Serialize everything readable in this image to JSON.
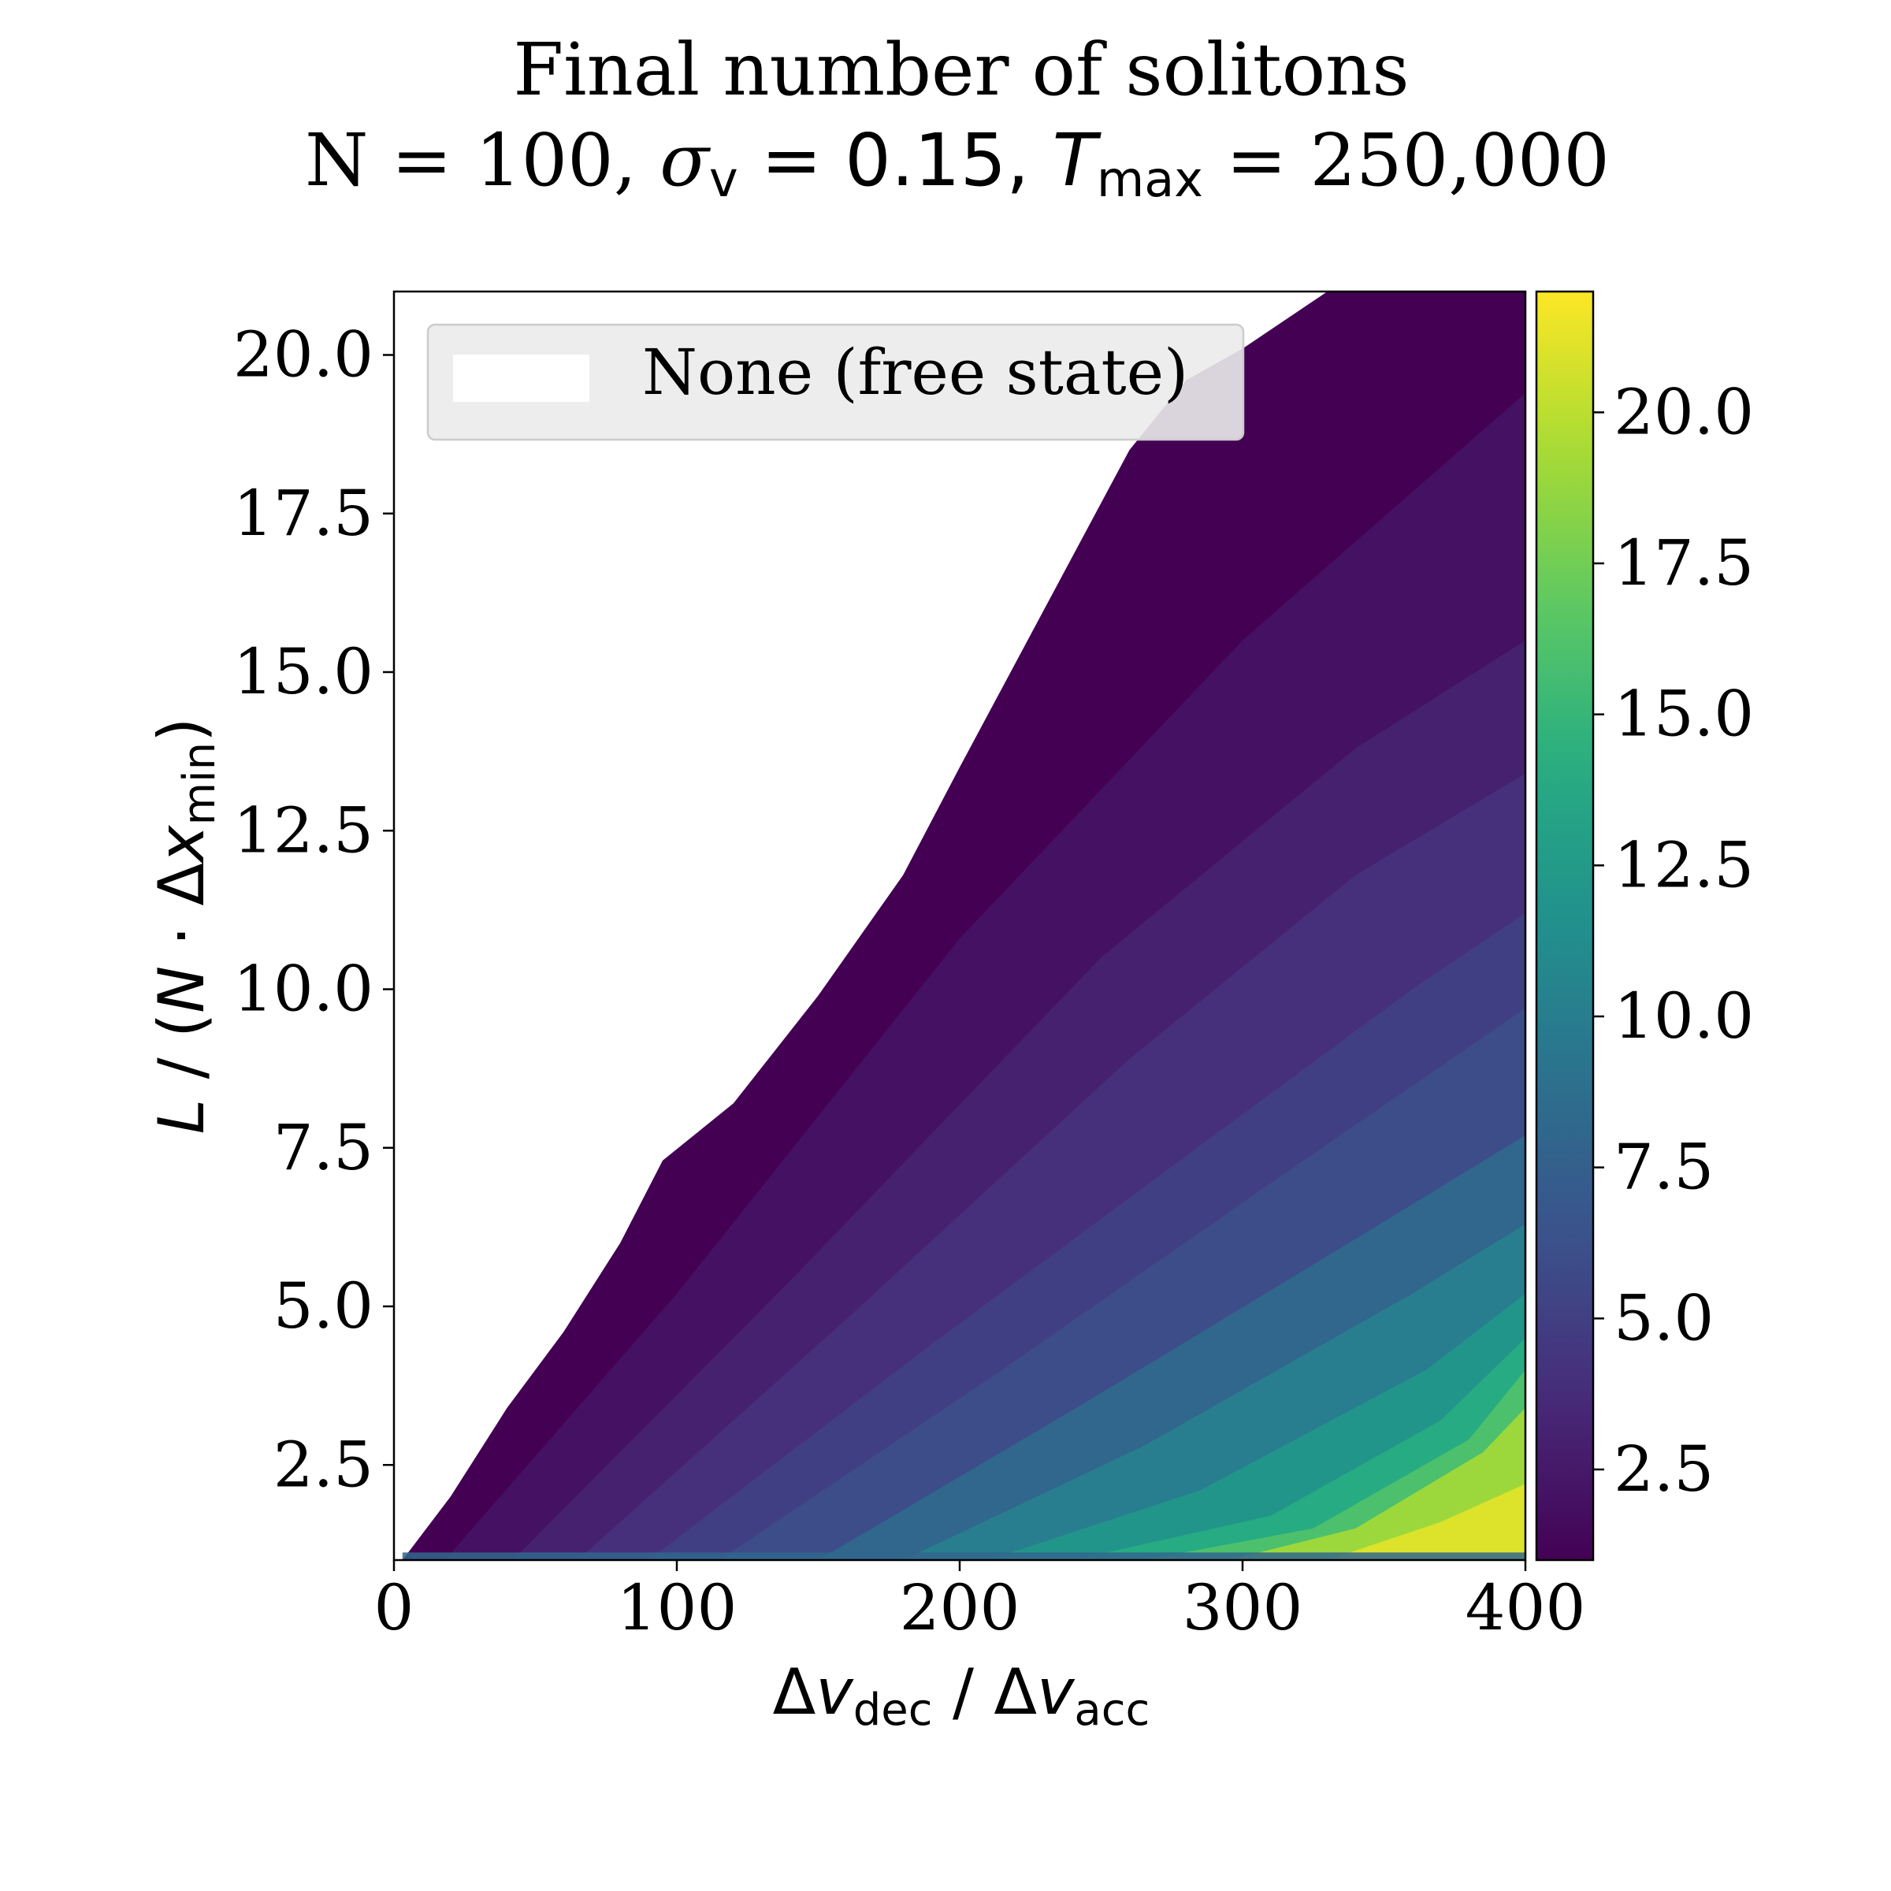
{
  "chart_data": {
    "type": "heatmap",
    "title_line1": "Final number of solitons",
    "title_line2": {
      "n_part": "N = 100, ",
      "sigma_symbol": "σ",
      "sigma_sub": "v",
      "sigma_value": " = 0.15, ",
      "t_symbol": "T",
      "t_sub": "max",
      "t_value": " = 250,000"
    },
    "xlabel": {
      "d1": "Δ",
      "v1": "v",
      "sub1": "dec",
      "sep": " / ",
      "d2": "Δ",
      "v2": "v",
      "sub2": "acc"
    },
    "ylabel": {
      "l": "L",
      "mid": " / (",
      "n": "N",
      "dot": " · ",
      "d": "Δ",
      "x": "x",
      "sub": "min",
      "end": ")"
    },
    "xlim": [
      0,
      400
    ],
    "ylim": [
      1.0,
      21.0
    ],
    "xticks": [
      0,
      100,
      200,
      300,
      400
    ],
    "xtick_labels": [
      "0",
      "100",
      "200",
      "300",
      "400"
    ],
    "yticks": [
      2.5,
      5.0,
      7.5,
      10.0,
      12.5,
      15.0,
      17.5,
      20.0
    ],
    "ytick_labels": [
      "2.5",
      "5.0",
      "7.5",
      "10.0",
      "12.5",
      "15.0",
      "17.5",
      "20.0"
    ],
    "colorbar": {
      "colormap": "viridis",
      "range": [
        1,
        22
      ],
      "ticks": [
        2.5,
        5.0,
        7.5,
        10.0,
        12.5,
        15.0,
        17.5,
        20.0
      ],
      "tick_labels": [
        "2.5",
        "5.0",
        "7.5",
        "10.0",
        "12.5",
        "15.0",
        "17.5",
        "20.0"
      ]
    },
    "legend": {
      "label": "None (free state)",
      "swatch_color": "#ffffff",
      "position": "upper-left"
    },
    "free_state_boundary": [
      [
        3,
        1.0
      ],
      [
        20,
        2.0
      ],
      [
        40,
        3.4
      ],
      [
        60,
        4.6
      ],
      [
        80,
        6.0
      ],
      [
        95,
        7.3
      ],
      [
        120,
        8.2
      ],
      [
        150,
        9.9
      ],
      [
        180,
        11.8
      ],
      [
        200,
        13.5
      ],
      [
        230,
        16.0
      ],
      [
        260,
        18.5
      ],
      [
        280,
        19.6
      ],
      [
        300,
        20.1
      ],
      [
        330,
        21.0
      ]
    ],
    "contours": [
      {
        "value": 2,
        "points": [
          [
            18,
            1.0
          ],
          [
            100,
            5.2
          ],
          [
            200,
            10.8
          ],
          [
            300,
            15.5
          ],
          [
            400,
            19.4
          ]
        ]
      },
      {
        "value": 3,
        "points": [
          [
            42,
            1.0
          ],
          [
            140,
            5.4
          ],
          [
            250,
            10.5
          ],
          [
            340,
            13.8
          ],
          [
            400,
            15.5
          ]
        ]
      },
      {
        "value": 4,
        "points": [
          [
            65,
            1.0
          ],
          [
            160,
            4.8
          ],
          [
            260,
            8.9
          ],
          [
            340,
            11.8
          ],
          [
            400,
            13.4
          ]
        ]
      },
      {
        "value": 5,
        "points": [
          [
            90,
            1.0
          ],
          [
            190,
            4.4
          ],
          [
            290,
            7.7
          ],
          [
            360,
            10.0
          ],
          [
            400,
            11.2
          ]
        ]
      },
      {
        "value": 6,
        "points": [
          [
            115,
            1.0
          ],
          [
            215,
            4.0
          ],
          [
            315,
            7.1
          ],
          [
            400,
            9.7
          ]
        ]
      },
      {
        "value": 8,
        "points": [
          [
            150,
            1.0
          ],
          [
            245,
            3.5
          ],
          [
            345,
            6.2
          ],
          [
            400,
            7.7
          ]
        ]
      },
      {
        "value": 10,
        "points": [
          [
            180,
            1.0
          ],
          [
            265,
            2.8
          ],
          [
            360,
            5.2
          ],
          [
            400,
            6.3
          ]
        ]
      },
      {
        "value": 12,
        "points": [
          [
            210,
            1.0
          ],
          [
            285,
            2.1
          ],
          [
            365,
            4.0
          ],
          [
            400,
            5.2
          ]
        ]
      },
      {
        "value": 14,
        "points": [
          [
            240,
            1.0
          ],
          [
            310,
            1.7
          ],
          [
            370,
            3.2
          ],
          [
            400,
            4.5
          ]
        ]
      },
      {
        "value": 16,
        "points": [
          [
            265,
            1.0
          ],
          [
            325,
            1.5
          ],
          [
            380,
            2.9
          ],
          [
            400,
            4.0
          ]
        ]
      },
      {
        "value": 19,
        "points": [
          [
            295,
            1.0
          ],
          [
            340,
            1.5
          ],
          [
            385,
            2.7
          ],
          [
            400,
            3.4
          ]
        ]
      },
      {
        "value": 21,
        "points": [
          [
            330,
            1.0
          ],
          [
            370,
            1.6
          ],
          [
            400,
            2.2
          ]
        ]
      }
    ],
    "bottom_row_value": 8,
    "grid": false
  }
}
